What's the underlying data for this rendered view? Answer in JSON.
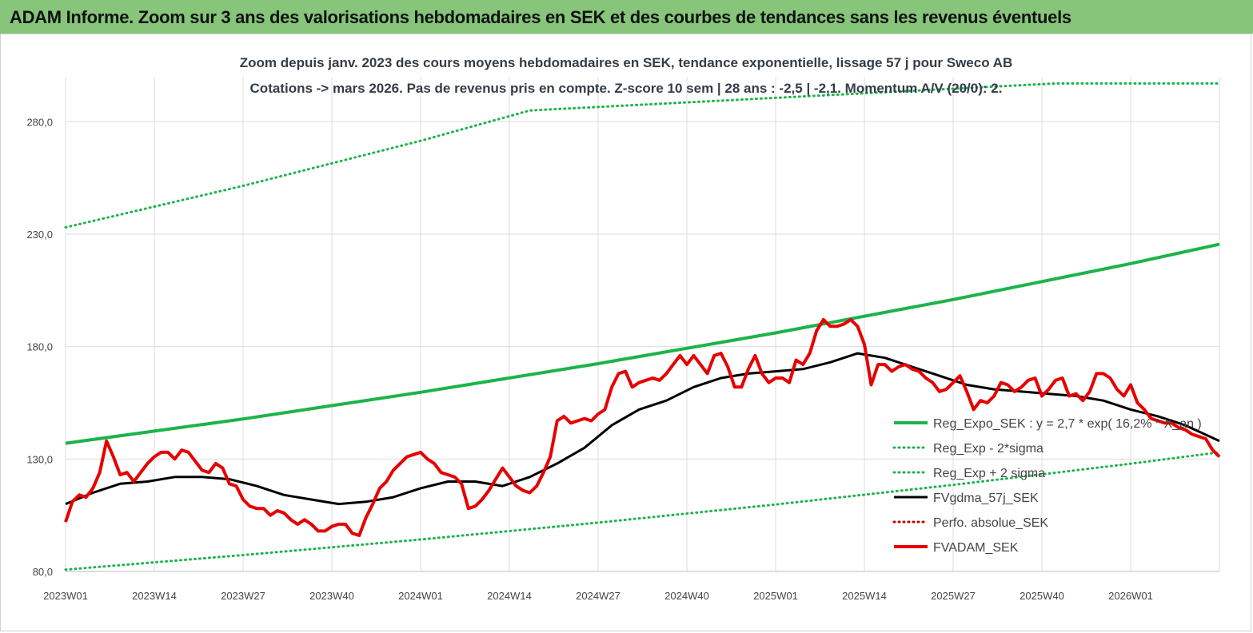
{
  "header": {
    "title": "ADAM Informe. Zoom sur 3 ans des valorisations hebdomadaires en SEK et des courbes de tendances sans les revenus éventuels"
  },
  "chart_data": {
    "type": "line",
    "title": "Zoom depuis janv. 2023 des cours moyens hebdomadaires en SEK, tendance exponentielle, lissage 57 j pour Sweco AB",
    "subtitle": "Cotations -> mars 2026. Pas de revenus pris en  compte. Z-score 10 sem  | 28 ans : -2,5 | -2,1. Momentum A/V (20/0): 2.",
    "xlabel": "",
    "ylabel": "",
    "x_ticks": [
      "2023W01",
      "2023W14",
      "2023W27",
      "2023W40",
      "2024W01",
      "2024W14",
      "2024W27",
      "2024W40",
      "2025W01",
      "2025W14",
      "2025W27",
      "2025W40",
      "2026W01"
    ],
    "x_range_weeks": [
      0,
      169
    ],
    "y_ticks": [
      "80,0",
      "130,0",
      "180,0",
      "230,0",
      "280,0"
    ],
    "ylim": [
      80,
      300
    ],
    "grid": true,
    "legend_placement": "right",
    "series": [
      {
        "name": "Reg_Expo_SEK : y = 2,7 * exp( 16,2% * X_an )",
        "style": "solid-thick",
        "color": "#1db34a",
        "x": [
          0,
          26,
          52,
          78,
          104,
          130,
          156,
          169
        ],
        "y": [
          137.0,
          147.8,
          159.7,
          172.4,
          186.1,
          200.9,
          216.9,
          225.5
        ]
      },
      {
        "name": "Reg_Exp - 2*sigma",
        "style": "dotted",
        "color": "#1db34a",
        "x": [
          0,
          26,
          52,
          78,
          104,
          130,
          156,
          169
        ],
        "y": [
          80.8,
          87.3,
          94.2,
          101.7,
          109.8,
          118.5,
          127.9,
          133.0
        ]
      },
      {
        "name": "Reg_Exp + 2 sigma",
        "style": "dotted",
        "color": "#1db34a",
        "x": [
          0,
          26,
          52,
          68,
          145,
          169
        ],
        "y": [
          233.0,
          251.5,
          271.5,
          285.0,
          297.0,
          297.0
        ]
      },
      {
        "name": "FVgdma_57j_SEK",
        "style": "solid",
        "color": "#000000",
        "x": [
          0,
          4,
          8,
          12,
          16,
          20,
          24,
          28,
          32,
          36,
          40,
          44,
          48,
          52,
          56,
          60,
          64,
          68,
          72,
          76,
          80,
          84,
          88,
          92,
          96,
          100,
          104,
          108,
          112,
          116,
          120,
          124,
          128,
          132,
          136,
          140,
          144,
          148,
          152,
          156,
          160,
          164,
          169
        ],
        "y": [
          110,
          115,
          119,
          120,
          122,
          122,
          121,
          118,
          114,
          112,
          110,
          111,
          113,
          117,
          120,
          120,
          118,
          122,
          128,
          135,
          145,
          152,
          156,
          162,
          166,
          168,
          169,
          170,
          173,
          177,
          175,
          171,
          167,
          163,
          161,
          160,
          159,
          158,
          156,
          152,
          149,
          145,
          138
        ]
      },
      {
        "name": "Perfo. absolue_SEK",
        "style": "dotted",
        "color": "#c00000",
        "x": [],
        "y": []
      },
      {
        "name": "FVADAM_SEK",
        "style": "solid-thick",
        "color": "#e60000",
        "x": [
          0,
          1,
          2,
          3,
          4,
          5,
          6,
          7,
          8,
          9,
          10,
          11,
          12,
          13,
          14,
          15,
          16,
          17,
          18,
          19,
          20,
          21,
          22,
          23,
          24,
          25,
          26,
          27,
          28,
          29,
          30,
          31,
          32,
          33,
          34,
          35,
          36,
          37,
          38,
          39,
          40,
          41,
          42,
          43,
          44,
          45,
          46,
          47,
          48,
          49,
          50,
          51,
          52,
          53,
          54,
          55,
          56,
          57,
          58,
          59,
          60,
          61,
          62,
          63,
          64,
          65,
          66,
          67,
          68,
          69,
          70,
          71,
          72,
          73,
          74,
          75,
          76,
          77,
          78,
          79,
          80,
          81,
          82,
          83,
          84,
          85,
          86,
          87,
          88,
          89,
          90,
          91,
          92,
          93,
          94,
          95,
          96,
          97,
          98,
          99,
          100,
          101,
          102,
          103,
          104,
          105,
          106,
          107,
          108,
          109,
          110,
          111,
          112,
          113,
          114,
          115,
          116,
          117,
          118,
          119,
          120,
          121,
          122,
          123,
          124,
          125,
          126,
          127,
          128,
          129,
          130,
          131,
          132,
          133,
          134,
          135,
          136,
          137,
          138,
          139,
          140,
          141,
          142,
          143,
          144,
          145,
          146,
          147,
          148,
          149,
          150,
          151,
          152,
          153,
          154,
          155,
          156,
          157,
          158,
          159,
          160,
          161,
          162,
          163,
          164,
          165,
          166,
          167,
          168,
          169
        ],
        "y": [
          102,
          111,
          114,
          113,
          117,
          124,
          138,
          131,
          123,
          124,
          120,
          124,
          128,
          131,
          133,
          133,
          130,
          134,
          133,
          129,
          125,
          124,
          128,
          126,
          119,
          118,
          112,
          109,
          108,
          108,
          105,
          107,
          106,
          103,
          101,
          103,
          101,
          98,
          98,
          100,
          101,
          101,
          97,
          96,
          104,
          110,
          117,
          120,
          125,
          128,
          131,
          132,
          133,
          130,
          128,
          124,
          123,
          122,
          119,
          108,
          109,
          112,
          116,
          121,
          126,
          122,
          118,
          116,
          115,
          118,
          124,
          131,
          147,
          149,
          146,
          147,
          148,
          147,
          150,
          152,
          162,
          168,
          169,
          162,
          164,
          165,
          166,
          165,
          168,
          172,
          176,
          172,
          176,
          172,
          168,
          176,
          177,
          171,
          162,
          162,
          170,
          176,
          168,
          164,
          166,
          166,
          164,
          174,
          172,
          177,
          187,
          192,
          189,
          189,
          190,
          192,
          189,
          181,
          163,
          172,
          172,
          169,
          171,
          172,
          170,
          169,
          166,
          164,
          160,
          161,
          164,
          167,
          160,
          152,
          156,
          155,
          158,
          164,
          163,
          160,
          162,
          165,
          166,
          158,
          161,
          165,
          166,
          158,
          159,
          156,
          160,
          168,
          168,
          166,
          161,
          158,
          163,
          155,
          152,
          148,
          147,
          146,
          146,
          144,
          143,
          141,
          140,
          139,
          134,
          131
        ]
      }
    ]
  }
}
